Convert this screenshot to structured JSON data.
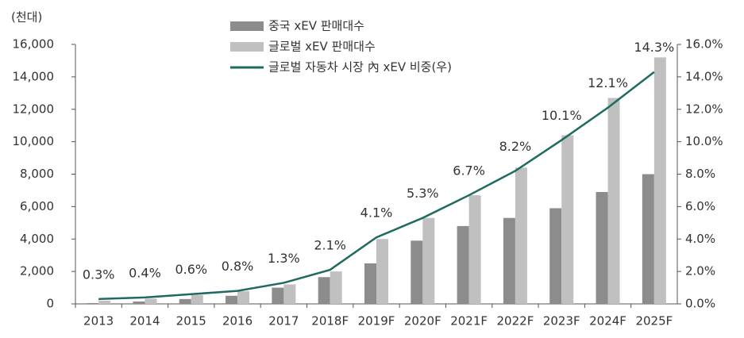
{
  "chart_data": {
    "type": "bar",
    "y_label": "(천대)",
    "categories": [
      "2013",
      "2014",
      "2015",
      "2016",
      "2017",
      "2018F",
      "2019F",
      "2020F",
      "2021F",
      "2022F",
      "2023F",
      "2024F",
      "2025F"
    ],
    "series": [
      {
        "name": "중국 xEV 판매대수",
        "color": "#8c8c8c",
        "values": [
          50,
          150,
          300,
          500,
          1000,
          1650,
          2500,
          3900,
          4800,
          5300,
          5900,
          6900,
          8000
        ]
      },
      {
        "name": "글로벌 xEV 판매대수",
        "color": "#c0c0c0",
        "values": [
          200,
          320,
          550,
          780,
          1200,
          2000,
          4000,
          5300,
          6700,
          8400,
          10400,
          12700,
          15200
        ]
      },
      {
        "name": "글로벌 자동차 시장 內 xEV 비중(우)",
        "type": "line",
        "axis": "y2",
        "color": "#1f6b5f",
        "values": [
          0.3,
          0.4,
          0.6,
          0.8,
          1.3,
          2.1,
          4.1,
          5.3,
          6.7,
          8.2,
          10.1,
          12.1,
          14.3
        ],
        "value_labels": [
          "0.3%",
          "0.4%",
          "0.6%",
          "0.8%",
          "1.3%",
          "2.1%",
          "4.1%",
          "5.3%",
          "6.7%",
          "8.2%",
          "10.1%",
          "12.1%",
          "14.3%"
        ]
      }
    ],
    "ylim": [
      0,
      16000
    ],
    "yticks": [
      0,
      {
        "value": 2000,
        "label": "2,000"
      },
      {
        "value": 4000,
        "label": "4,000"
      },
      {
        "value": 6000,
        "label": "6,000"
      },
      {
        "value": 8000,
        "label": "8,000"
      },
      {
        "value": 10000,
        "label": "10,000"
      },
      {
        "value": 12000,
        "label": "12,000"
      },
      {
        "value": 14000,
        "label": "14,000"
      },
      {
        "value": 16000,
        "label": "16,000"
      }
    ],
    "y2lim": [
      0,
      16
    ],
    "y2ticks": [
      {
        "value": 0,
        "label": "0.0%"
      },
      {
        "value": 2,
        "label": "2.0%"
      },
      {
        "value": 4,
        "label": "4.0%"
      },
      {
        "value": 6,
        "label": "6.0%"
      },
      {
        "value": 8,
        "label": "8.0%"
      },
      {
        "value": 10,
        "label": "10.0%"
      },
      {
        "value": 12,
        "label": "12.0%"
      },
      {
        "value": 14,
        "label": "14.0%"
      },
      {
        "value": 16,
        "label": "16.0%"
      }
    ],
    "legend": "top"
  }
}
